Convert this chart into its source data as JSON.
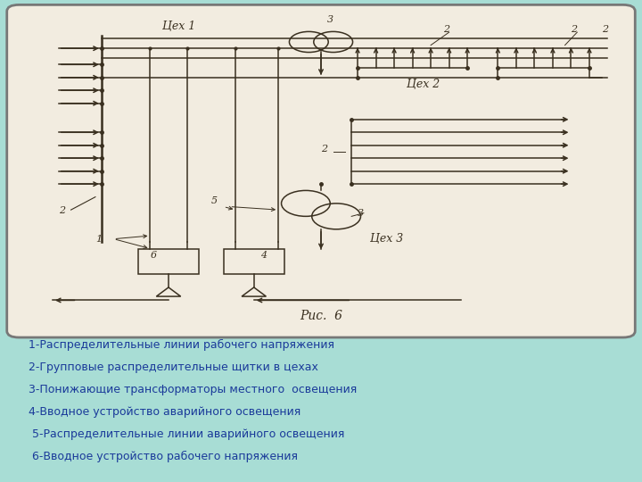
{
  "bg_color": "#a8ddd5",
  "diagram_bg": "#f2ece0",
  "diagram_border_color": "#888888",
  "text_color": "#1a3a9a",
  "diagram_line_color": "#3a3020",
  "title": "Рис.  6",
  "labels": [
    "1-Распределительные линии рабочего напряжения",
    "2-Групповые распределительные щитки в цехах",
    "3-Понижающие трансформаторы местного  освещения",
    "4-Вводное устройство аварийного освещения",
    " 5-Распределительные линии аварийного освещения",
    " 6-Вводное устройство рабочего напряжения"
  ]
}
